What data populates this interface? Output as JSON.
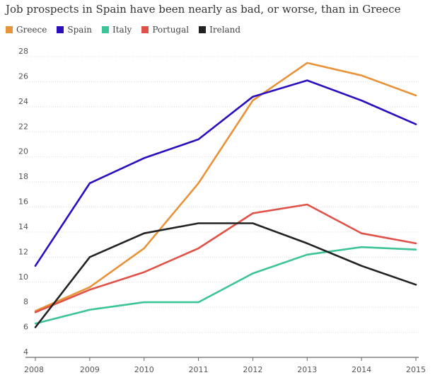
{
  "title": "Job prospects in Spain have been nearly as bad, or worse, than in Greece",
  "chart_data": {
    "type": "line",
    "title": "Job prospects in Spain have been nearly as bad, or worse, than in Greece",
    "xlabel": "",
    "ylabel": "",
    "x": [
      "2008",
      "2009",
      "2010",
      "2011",
      "2012",
      "2013",
      "2014",
      "2015"
    ],
    "y_ticks": [
      "4",
      "6",
      "8",
      "10",
      "12",
      "14",
      "16",
      "18",
      "20",
      "22",
      "24",
      "26",
      "28"
    ],
    "ylim": [
      4,
      28
    ],
    "grid": "horizontal",
    "legend_position": "top-left",
    "series": [
      {
        "name": "Greece",
        "color": "#e8923a",
        "values": [
          7.7,
          9.6,
          12.7,
          17.9,
          24.5,
          27.5,
          26.5,
          24.9
        ]
      },
      {
        "name": "Spain",
        "color": "#2b0fbf",
        "values": [
          11.3,
          17.9,
          19.9,
          21.4,
          24.8,
          26.1,
          24.5,
          22.6
        ]
      },
      {
        "name": "Italy",
        "color": "#3cc497",
        "values": [
          6.7,
          7.8,
          8.4,
          8.4,
          10.7,
          12.2,
          12.8,
          12.6
        ]
      },
      {
        "name": "Portugal",
        "color": "#e05147",
        "values": [
          7.6,
          9.4,
          10.8,
          12.7,
          15.5,
          16.2,
          13.9,
          13.1
        ]
      },
      {
        "name": "Ireland",
        "color": "#222222",
        "values": [
          6.4,
          12.0,
          13.9,
          14.7,
          14.7,
          13.1,
          11.3,
          9.8
        ]
      }
    ]
  }
}
